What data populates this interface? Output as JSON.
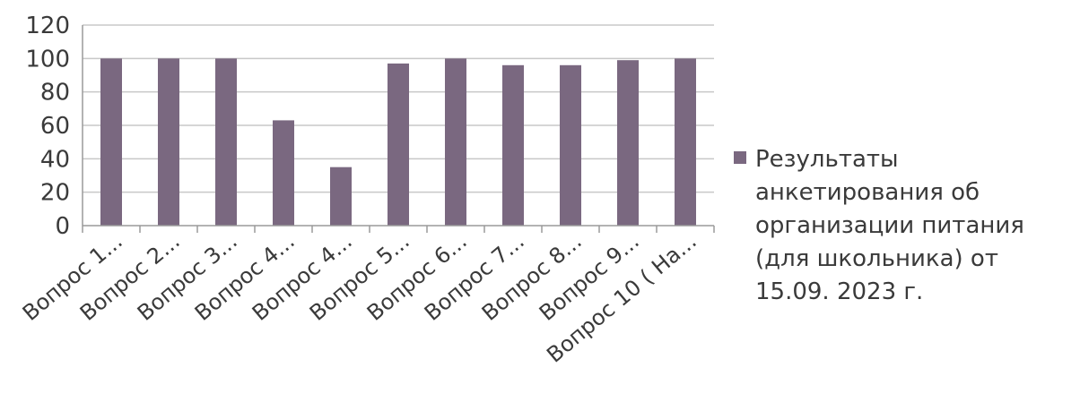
{
  "chart_data": {
    "type": "bar",
    "categories": [
      "Вопрос 1...",
      "Вопрос 2...",
      "Вопрос 3...",
      "Вопрос 4...",
      "Вопрос 4...",
      "Вопрос 5...",
      "Вопрос 6...",
      "Вопрос 7...",
      "Вопрос 8...",
      "Вопрос 9...",
      "Вопрос 10 ( На..."
    ],
    "series": [
      {
        "name": "Результаты\nанкетирования об\nорганизации питания\n(для школьника) от\n15.09. 2023 г.",
        "values": [
          100,
          100,
          100,
          63,
          35,
          97,
          100,
          96,
          96,
          99,
          100
        ]
      }
    ],
    "ylim": [
      0,
      120
    ],
    "yticks": [
      0,
      20,
      40,
      60,
      80,
      100,
      120
    ],
    "grid": true,
    "legend_position": "right",
    "colors": {
      "bar": "#7a6880",
      "grid": "#c8c8c8",
      "axis": "#9a9a9a",
      "text": "#3a3a3a"
    }
  }
}
